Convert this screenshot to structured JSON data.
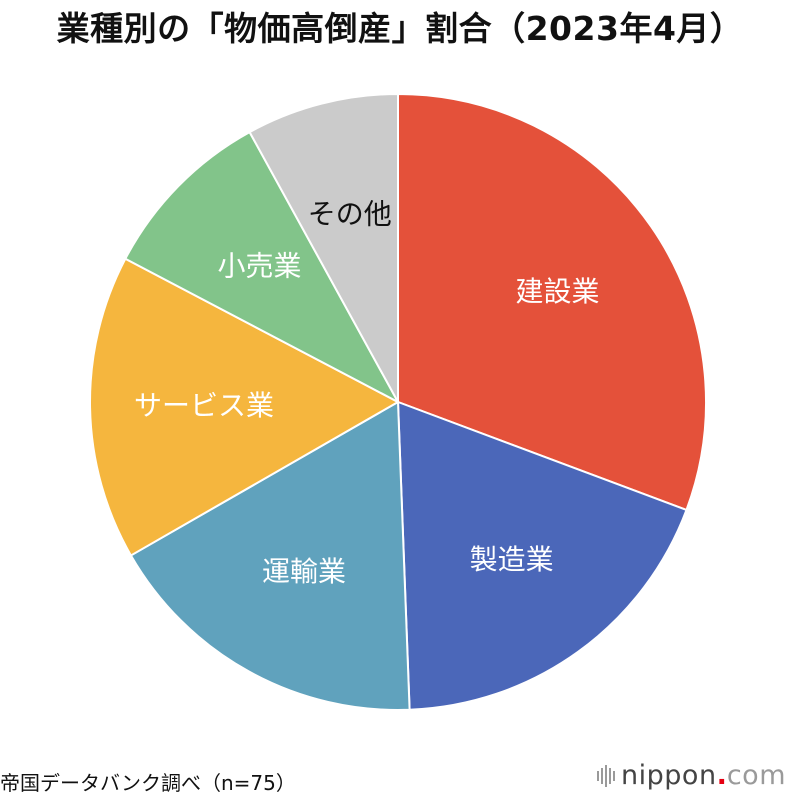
{
  "chart_data": {
    "type": "pie",
    "title": "業種別の「物価高倒産」割合（2023年4月）",
    "categories": [
      "建設業",
      "製造業",
      "運輸業",
      "サービス業",
      "小売業",
      "その他"
    ],
    "values": [
      30.7,
      18.7,
      17.3,
      16.0,
      9.3,
      8.0
    ],
    "unit": "%",
    "n": 75,
    "start": "12 o'clock",
    "direction": "clockwise",
    "legend": "none (labels inside slices)",
    "colors": [
      "#e4513a",
      "#4b67b9",
      "#60a2bd",
      "#f5b63e",
      "#82c48a",
      "#cbcbcb"
    ],
    "label_colors": [
      "#ffffff",
      "#ffffff",
      "#ffffff",
      "#ffffff",
      "#ffffff",
      "#111111"
    ]
  },
  "footer": {
    "source": "帝国データバンク調べ（n=75）",
    "brand_name": "nippon",
    "brand_dot": ".",
    "brand_tld": "com"
  }
}
